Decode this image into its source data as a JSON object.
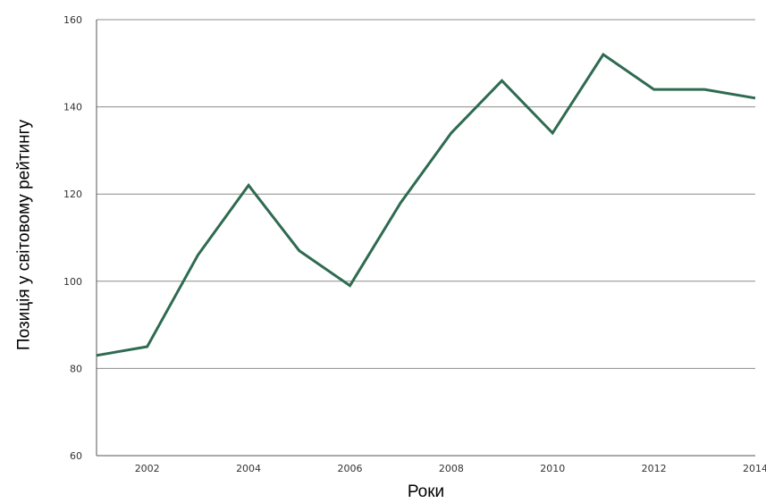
{
  "chart_data": {
    "type": "line",
    "title": "",
    "xlabel": "Роки",
    "ylabel": "Позиція у світовому рейтингу",
    "xlim": [
      2001,
      2014
    ],
    "ylim": [
      60,
      160
    ],
    "xticks": [
      2002,
      2004,
      2006,
      2008,
      2010,
      2012,
      2014
    ],
    "yticks": [
      60,
      80,
      100,
      120,
      140,
      160
    ],
    "grid": true,
    "x": [
      2001,
      2002,
      2003,
      2004,
      2005,
      2006,
      2007,
      2008,
      2009,
      2010,
      2011,
      2012,
      2013,
      2014
    ],
    "series": [
      {
        "values": [
          83,
          85,
          106,
          122,
          107,
          99,
          118,
          134,
          146,
          134,
          152,
          144,
          144,
          142
        ],
        "color": "#2e6b50"
      }
    ]
  },
  "colors": {
    "line": "#2e6b50",
    "grid": "#8c8c8c",
    "axis": "#555555"
  }
}
